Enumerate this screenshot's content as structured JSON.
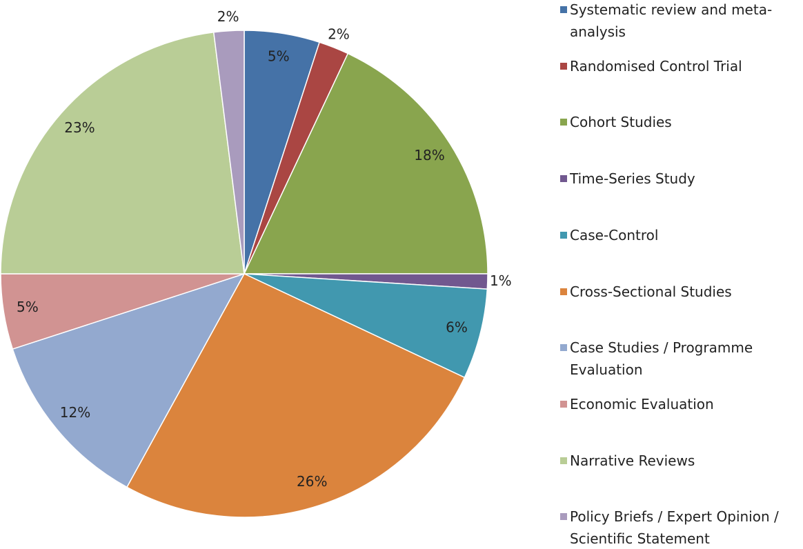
{
  "chart_data": {
    "type": "pie",
    "categories": [
      "Systematic review and meta-analysis",
      "Randomised Control Trial",
      "Cohort Studies",
      "Time-Series Study",
      "Case-Control",
      "Cross-Sectional Studies",
      "Case Studies / Programme Evaluation",
      "Economic Evaluation",
      "Narrative Reviews",
      "Policy Briefs / Expert Opinion / Scientific Statement"
    ],
    "values": [
      5,
      2,
      18,
      1,
      6,
      26,
      12,
      5,
      23,
      2
    ],
    "value_labels": [
      "5%",
      "2%",
      "18%",
      "1%",
      "6%",
      "26%",
      "12%",
      "5%",
      "23%",
      "2%"
    ],
    "colors": [
      "#4572a7",
      "#aa4643",
      "#89a54e",
      "#71588f",
      "#4198af",
      "#db843d",
      "#93a9cf",
      "#d19392",
      "#b9cd96",
      "#a99bbd"
    ],
    "legend": "right"
  }
}
